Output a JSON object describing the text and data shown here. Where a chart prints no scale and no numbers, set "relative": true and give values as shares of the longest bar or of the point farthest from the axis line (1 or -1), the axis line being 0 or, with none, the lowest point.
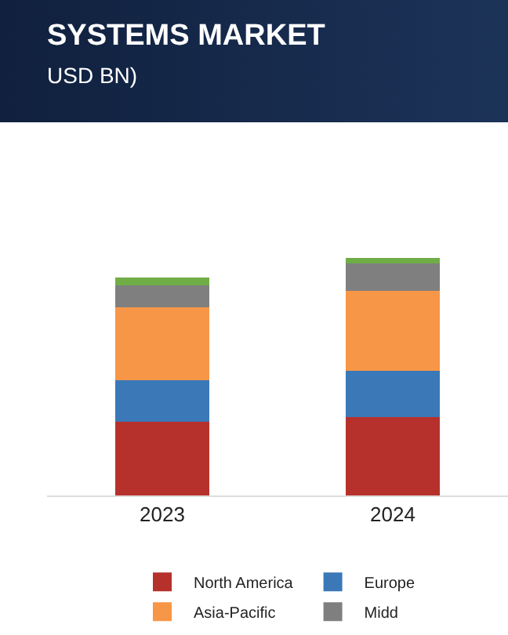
{
  "chart_data": {
    "type": "bar",
    "title": "SYSTEMS MARKET",
    "subtitle": "USD BN)",
    "categories": [
      "2023",
      "2024"
    ],
    "stacked": true,
    "relative": true,
    "legend": "bottom",
    "series": [
      {
        "name": "North America",
        "color": "#b7312c",
        "values": [
          0.31,
          0.331
        ]
      },
      {
        "name": "Europe",
        "color": "#3a78b8",
        "values": [
          0.175,
          0.194
        ]
      },
      {
        "name": "Asia-Pacific",
        "color": "#f79646",
        "values": [
          0.306,
          0.337
        ]
      },
      {
        "name": "Midd",
        "color": "#7f7f7f",
        "values": [
          0.094,
          0.113
        ]
      },
      {
        "color": "#70ad47",
        "values": [
          0.031,
          0.025
        ]
      }
    ]
  }
}
